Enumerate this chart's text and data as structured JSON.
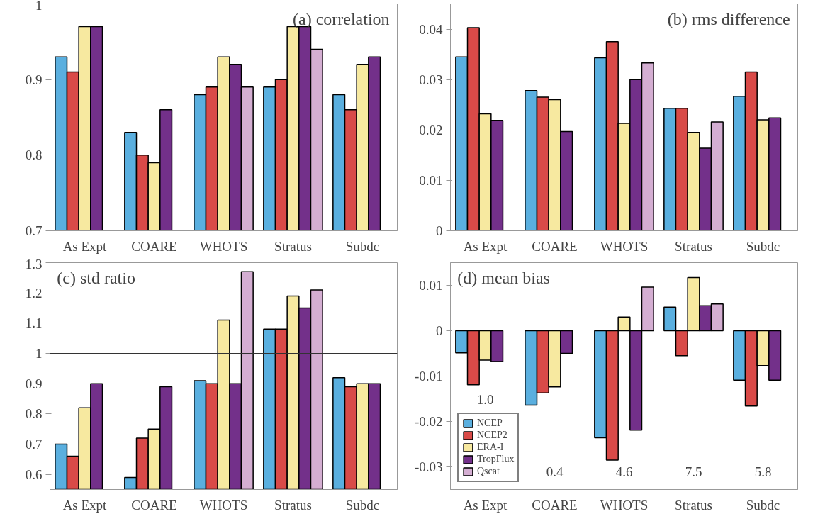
{
  "chart_data": [
    {
      "type": "bar",
      "title": "(a)  correlation",
      "categories": [
        "As Expt",
        "COARE",
        "WHOTS",
        "Stratus",
        "Subdc"
      ],
      "ylim": [
        0.7,
        1.0
      ],
      "yticks": [
        0.7,
        0.8,
        0.9,
        1
      ],
      "grid": false,
      "legend": false,
      "series": [
        {
          "color": "#5aafdf",
          "values": [
            0.93,
            0.83,
            0.88,
            0.89,
            0.88
          ]
        },
        {
          "color": "#d94a48",
          "values": [
            0.91,
            0.8,
            0.89,
            0.9,
            0.86
          ]
        },
        {
          "color": "#f7e9a0",
          "values": [
            0.97,
            0.79,
            0.93,
            0.97,
            0.92
          ]
        },
        {
          "color": "#73308a",
          "values": [
            0.97,
            0.86,
            0.92,
            0.97,
            0.93
          ]
        },
        {
          "color": "#d4aed2",
          "values": [
            null,
            null,
            0.89,
            0.94,
            null
          ]
        }
      ]
    },
    {
      "type": "bar",
      "title": "(b)  rms difference",
      "categories": [
        "As Expt",
        "COARE",
        "WHOTS",
        "Stratus",
        "Subdc"
      ],
      "ylim": [
        0,
        0.045
      ],
      "yticks": [
        0,
        0.01,
        0.02,
        0.03,
        0.04
      ],
      "grid": false,
      "legend": false,
      "series": [
        {
          "color": "#5aafdf",
          "values": [
            0.0345,
            0.0278,
            0.0343,
            0.0243,
            0.0267
          ]
        },
        {
          "color": "#d94a48",
          "values": [
            0.0403,
            0.0265,
            0.0375,
            0.0243,
            0.0315
          ]
        },
        {
          "color": "#f7e9a0",
          "values": [
            0.0232,
            0.026,
            0.0213,
            0.0195,
            0.022
          ]
        },
        {
          "color": "#73308a",
          "values": [
            0.0219,
            0.0197,
            0.03,
            0.0164,
            0.0224
          ]
        },
        {
          "color": "#d4aed2",
          "values": [
            null,
            null,
            0.0333,
            0.0216,
            null
          ]
        }
      ]
    },
    {
      "type": "bar",
      "title": "(c)  std ratio",
      "categories": [
        "As Expt",
        "COARE",
        "WHOTS",
        "Stratus",
        "Subdc"
      ],
      "ylim": [
        0.55,
        1.3
      ],
      "yticks": [
        0.6,
        0.7,
        0.8,
        0.9,
        1,
        1.1,
        1.2,
        1.3
      ],
      "grid": false,
      "legend": false,
      "ref_lines": [
        {
          "axis": "y",
          "value": 1,
          "color": "#333333"
        }
      ],
      "series": [
        {
          "color": "#5aafdf",
          "values": [
            0.7,
            0.59,
            0.91,
            1.08,
            0.92
          ]
        },
        {
          "color": "#d94a48",
          "values": [
            0.66,
            0.72,
            0.9,
            1.08,
            0.89
          ]
        },
        {
          "color": "#f7e9a0",
          "values": [
            0.82,
            0.75,
            1.11,
            1.19,
            0.9
          ]
        },
        {
          "color": "#73308a",
          "values": [
            0.9,
            0.89,
            0.9,
            1.15,
            0.9
          ]
        },
        {
          "color": "#d4aed2",
          "values": [
            null,
            null,
            1.27,
            1.21,
            null
          ]
        }
      ]
    },
    {
      "type": "bar",
      "title": "(d)  mean bias",
      "categories": [
        "As Expt",
        "COARE",
        "WHOTS",
        "Stratus",
        "Subdc"
      ],
      "ylim": [
        -0.035,
        0.015
      ],
      "yticks": [
        -0.03,
        -0.02,
        -0.01,
        0,
        0.01
      ],
      "grid": false,
      "legend": "bottom left",
      "annotations": [
        "1.0",
        "0.4",
        "4.6",
        "7.5",
        "5.8"
      ],
      "series": [
        {
          "name": "NCEP",
          "color": "#5aafdf",
          "values": [
            -0.0049,
            -0.0164,
            -0.0236,
            0.0052,
            -0.0109
          ]
        },
        {
          "name": "NCEP2",
          "color": "#d94a48",
          "values": [
            -0.0119,
            -0.0137,
            -0.0285,
            -0.0055,
            -0.0166
          ]
        },
        {
          "name": "ERA-I",
          "color": "#f7e9a0",
          "values": [
            -0.0065,
            -0.0124,
            0.003,
            0.0117,
            -0.0077
          ]
        },
        {
          "name": "TropFlux",
          "color": "#73308a",
          "values": [
            -0.0068,
            -0.005,
            -0.0219,
            0.0055,
            -0.0109
          ]
        },
        {
          "name": "Qscat",
          "color": "#d4aed2",
          "values": [
            null,
            null,
            0.0096,
            0.0059,
            null
          ]
        }
      ]
    }
  ]
}
